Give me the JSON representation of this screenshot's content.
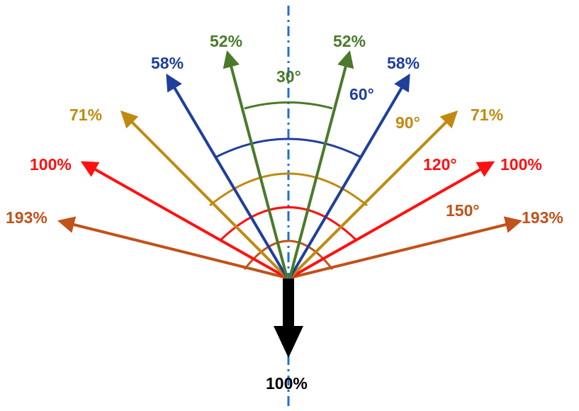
{
  "colors": {
    "green": "#4a7a2a",
    "blue": "#1f3f9a",
    "gold": "#c08a10",
    "red": "#ff1010",
    "brown": "#c0521a",
    "black": "#000000",
    "axis": "#1f6fd0"
  },
  "load": {
    "label": "100%"
  },
  "legs": [
    {
      "id": "30",
      "color": "green",
      "angle_label": "30°",
      "leg_label_left": "52%",
      "leg_label_right": "52%"
    },
    {
      "id": "60",
      "color": "blue",
      "angle_label": "60°",
      "leg_label_left": "58%",
      "leg_label_right": "58%"
    },
    {
      "id": "90",
      "color": "gold",
      "angle_label": "90°",
      "leg_label_left": "71%",
      "leg_label_right": "71%"
    },
    {
      "id": "120",
      "color": "red",
      "angle_label": "120°",
      "leg_label_left": "100%",
      "leg_label_right": "100%"
    },
    {
      "id": "150",
      "color": "brown",
      "angle_label": "150°",
      "leg_label_left": "193%",
      "leg_label_right": "193%"
    }
  ]
}
